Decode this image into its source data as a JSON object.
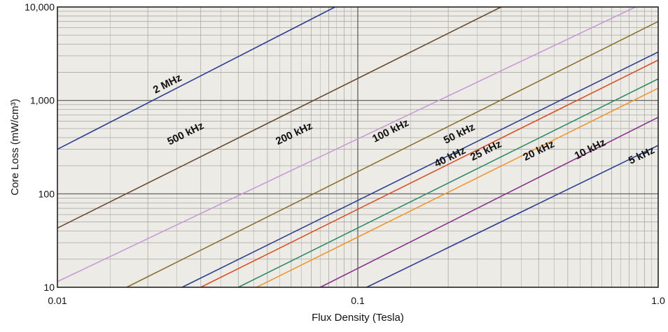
{
  "chart_data": {
    "type": "line",
    "xlabel": "Flux Density (Tesla)",
    "ylabel": "Core Loss (mW/cm³)",
    "xscale": "log",
    "yscale": "log",
    "xlim": [
      0.01,
      1.0
    ],
    "ylim": [
      10,
      10000
    ],
    "x_ticks": [
      {
        "value": 0.01,
        "label": "0.01"
      },
      {
        "value": 0.1,
        "label": "0.1"
      },
      {
        "value": 1.0,
        "label": "1.0"
      }
    ],
    "y_ticks": [
      {
        "value": 10,
        "label": "10"
      },
      {
        "value": 100,
        "label": "100"
      },
      {
        "value": 1000,
        "label": "1,000"
      },
      {
        "value": 10000,
        "label": "10,000"
      }
    ],
    "grid": true,
    "background": "#ecebe6",
    "series": [
      {
        "name": "2 MHz",
        "color": "#2e3f92",
        "x": [
          0.01,
          0.084
        ],
        "y": [
          300,
          10000
        ],
        "label_at": [
          0.0235,
          1400
        ]
      },
      {
        "name": "500 kHz",
        "color": "#6b4a2e",
        "x": [
          0.01,
          0.3
        ],
        "y": [
          43,
          10000
        ],
        "label_at": [
          0.027,
          410
        ]
      },
      {
        "name": "200 kHz",
        "color": "#c79ad6",
        "x": [
          0.01,
          0.84
        ],
        "y": [
          11.5,
          10000
        ],
        "label_at": [
          0.062,
          410
        ]
      },
      {
        "name": "100 kHz",
        "color": "#8c6f2b",
        "x": [
          0.017,
          1.0
        ],
        "y": [
          10,
          7000
        ],
        "label_at": [
          0.13,
          440
        ]
      },
      {
        "name": "50 kHz",
        "color": "#2e3f92",
        "x": [
          0.026,
          1.0
        ],
        "y": [
          10,
          3300
        ],
        "label_at": [
          0.22,
          410
        ]
      },
      {
        "name": "40 kHz",
        "color": "#d9502a",
        "x": [
          0.03,
          1.0
        ],
        "y": [
          10,
          2700
        ],
        "label_at": [
          0.205,
          230
        ]
      },
      {
        "name": "25 kHz",
        "color": "#2e8a67",
        "x": [
          0.04,
          1.0
        ],
        "y": [
          10,
          1700
        ],
        "label_at": [
          0.27,
          270
        ]
      },
      {
        "name": "20 kHz",
        "color": "#f0962e",
        "x": [
          0.046,
          1.0
        ],
        "y": [
          10,
          1350
        ],
        "label_at": [
          0.405,
          270
        ]
      },
      {
        "name": "10 kHz",
        "color": "#8a2f8c",
        "x": [
          0.075,
          1.0
        ],
        "y": [
          10,
          660
        ],
        "label_at": [
          0.6,
          280
        ]
      },
      {
        "name": "5 kHz",
        "color": "#2e3f92",
        "x": [
          0.107,
          1.0
        ],
        "y": [
          10,
          330
        ],
        "label_at": [
          0.89,
          240
        ]
      }
    ]
  }
}
